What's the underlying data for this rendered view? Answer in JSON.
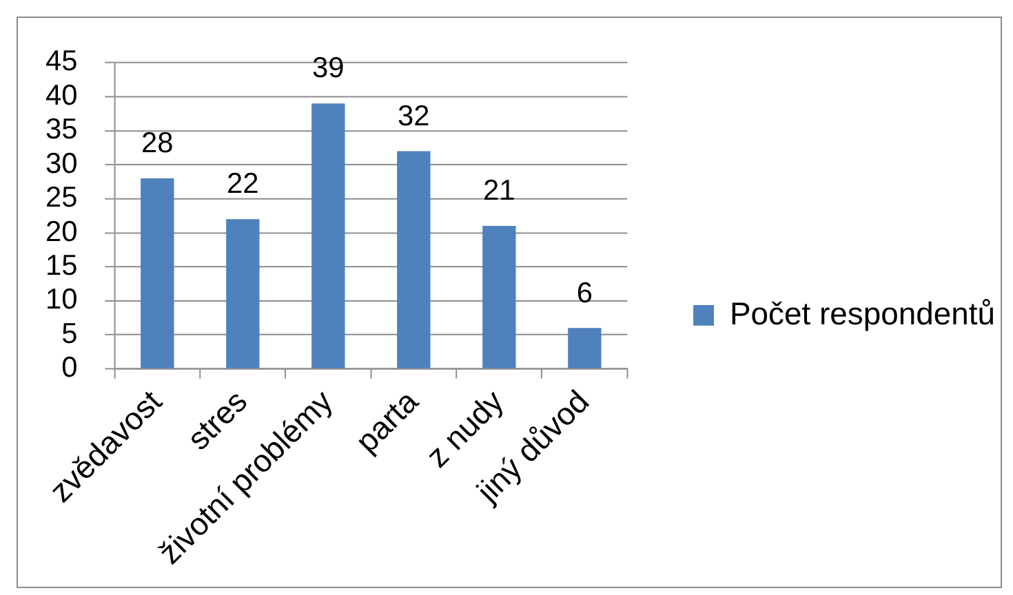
{
  "chart_data": {
    "type": "bar",
    "categories": [
      "zvědavost",
      "stres",
      "životní problémy",
      "parta",
      "z nudy",
      "jiný důvod"
    ],
    "series": [
      {
        "name": "Počet respondentů",
        "color": "#4f81bd",
        "values": [
          28,
          22,
          39,
          32,
          21,
          6
        ]
      }
    ],
    "ylim": [
      0,
      45
    ],
    "yticks": [
      0,
      5,
      10,
      15,
      20,
      25,
      30,
      35,
      40,
      45
    ],
    "grid": "y",
    "legend": "right",
    "data_labels": true
  }
}
